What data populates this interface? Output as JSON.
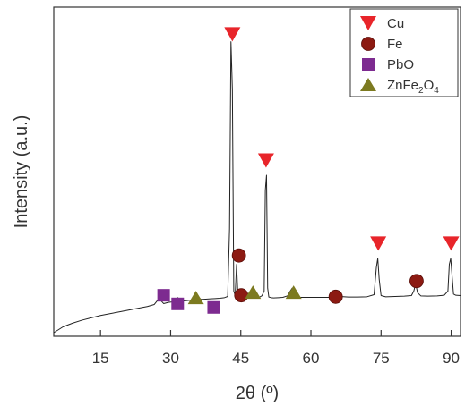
{
  "chart_data": {
    "type": "line",
    "xlabel": "2θ (º)",
    "ylabel": "Intensity (a.u.)",
    "xlim": [
      5,
      92
    ],
    "ylim": [
      0,
      100
    ],
    "x_ticks": [
      15,
      30,
      45,
      60,
      75,
      90
    ],
    "grid": false,
    "legend_placement": "top-right",
    "series": [
      {
        "name": "",
        "color": "#222222",
        "x": [
          5.0,
          7.0,
          9.0,
          11.0,
          13.0,
          15.0,
          17.0,
          19.0,
          21.0,
          23.0,
          25.0,
          26.5,
          27.5,
          28.5,
          29.5,
          30.5,
          31.5,
          32.5,
          33.5,
          34.5,
          35.5,
          36.5,
          37.5,
          38.5,
          39.5,
          40.5,
          41.5,
          42.2,
          42.6,
          42.9,
          43.2,
          43.5,
          43.8,
          44.1,
          44.4,
          44.7,
          45.0,
          45.3,
          45.6,
          45.9,
          46.5,
          47.0,
          47.5,
          48.0,
          48.5,
          49.0,
          49.5,
          50.0,
          50.25,
          50.5,
          50.75,
          51.0,
          51.5,
          52.0,
          53.0,
          54.0,
          55.0,
          55.5,
          56.0,
          56.5,
          57.0,
          58.0,
          60.0,
          62.0,
          64.0,
          65.0,
          65.5,
          66.0,
          68.0,
          70.0,
          72.0,
          73.5,
          74.0,
          74.3,
          74.6,
          75.0,
          76.0,
          78.0,
          80.0,
          81.5,
          82.0,
          82.4,
          82.8,
          83.5,
          85.0,
          87.0,
          88.5,
          89.3,
          89.6,
          89.9,
          90.2,
          90.5,
          91.0,
          92.0
        ],
        "y": [
          0.0,
          2.0,
          3.2,
          4.2,
          5.0,
          5.8,
          6.4,
          7.0,
          7.6,
          8.2,
          8.8,
          9.5,
          11.5,
          9.8,
          10.2,
          10.4,
          11.8,
          10.6,
          10.8,
          11.0,
          12.5,
          11.2,
          11.3,
          11.4,
          11.5,
          11.6,
          11.8,
          12.2,
          35.0,
          98.0,
          82.0,
          14.0,
          12.5,
          23.0,
          12.0,
          14.0,
          11.8,
          12.6,
          11.7,
          11.6,
          11.6,
          11.7,
          13.8,
          11.8,
          11.9,
          12.0,
          12.4,
          14.0,
          48.0,
          53.0,
          15.0,
          12.0,
          11.8,
          11.7,
          11.8,
          11.9,
          12.4,
          13.8,
          15.0,
          12.5,
          11.9,
          11.9,
          11.9,
          11.9,
          11.9,
          12.1,
          13.0,
          12.2,
          12.0,
          12.0,
          12.1,
          12.8,
          22.0,
          25.0,
          18.0,
          12.5,
          12.1,
          12.2,
          12.3,
          12.5,
          14.0,
          16.5,
          13.5,
          12.4,
          12.3,
          12.4,
          12.6,
          14.0,
          23.0,
          25.0,
          19.0,
          13.0,
          12.6,
          12.5
        ]
      }
    ],
    "markers": [
      {
        "name": "Cu",
        "shape": "triangle-down",
        "color": "#e8252a",
        "points": [
          [
            43.2,
            100.5
          ],
          [
            50.4,
            58.0
          ],
          [
            74.4,
            30.0
          ],
          [
            90.0,
            30.0
          ]
        ]
      },
      {
        "name": "Fe",
        "shape": "circle",
        "color": "#8c1a12",
        "points": [
          [
            44.6,
            26.0
          ],
          [
            45.1,
            12.6
          ],
          [
            65.3,
            12.1
          ],
          [
            82.6,
            17.4
          ]
        ]
      },
      {
        "name": "PbO",
        "shape": "square",
        "color": "#7d2b90",
        "points": [
          [
            28.5,
            12.6
          ],
          [
            31.5,
            9.7
          ],
          [
            39.2,
            8.5
          ]
        ]
      },
      {
        "name": "ZnFe2O4",
        "shape": "triangle-up",
        "color": "#7c7a20",
        "points": [
          [
            35.4,
            11.7
          ],
          [
            47.6,
            13.5
          ],
          [
            56.3,
            13.5
          ]
        ]
      }
    ],
    "legend": [
      {
        "label": "Cu",
        "shape": "triangle-down",
        "color": "#e8252a"
      },
      {
        "label": "Fe",
        "shape": "circle",
        "color": "#8c1a12"
      },
      {
        "label": "PbO",
        "shape": "square",
        "color": "#7d2b90"
      },
      {
        "label": "ZnFe",
        "sub1": "2",
        "mid": "O",
        "sub2": "4",
        "shape": "triangle-up",
        "color": "#7c7a20"
      }
    ]
  }
}
